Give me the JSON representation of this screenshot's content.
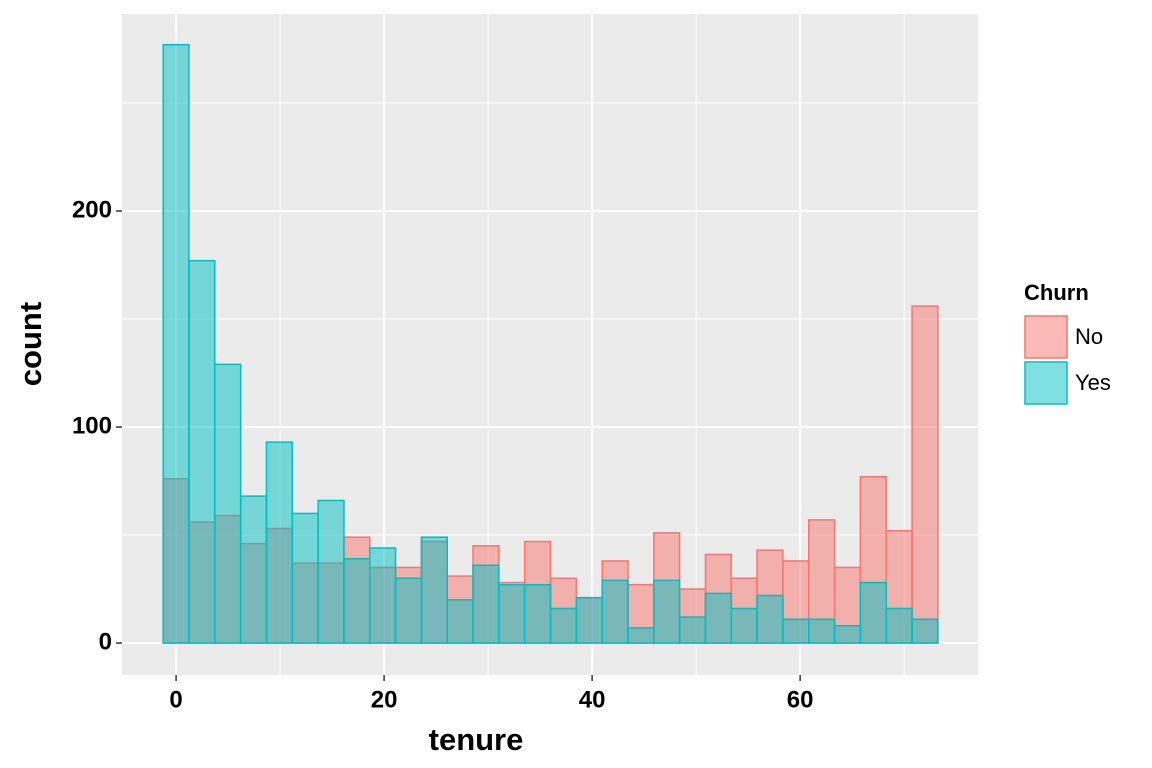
{
  "chart_data": {
    "type": "histogram",
    "x_label": "tenure",
    "y_label": "count",
    "legend_title": "Churn",
    "legend_position": "right",
    "bins": [
      -1.24,
      1.24,
      3.72,
      6.21,
      8.69,
      11.17,
      13.66,
      16.14,
      18.62,
      21.1,
      23.59,
      26.07,
      28.55,
      31.03,
      33.52,
      36.0,
      38.48,
      40.97,
      43.45,
      45.93,
      48.41,
      50.9,
      53.38,
      55.86,
      58.34,
      60.83,
      63.31,
      65.79,
      68.28,
      70.76,
      73.24
    ],
    "series": [
      {
        "name": "No",
        "color": "#F8766D",
        "values": [
          76,
          56,
          59,
          46,
          53,
          37,
          37,
          49,
          35,
          35,
          47,
          31,
          45,
          28,
          47,
          30,
          21,
          38,
          27,
          51,
          25,
          41,
          30,
          43,
          38,
          57,
          35,
          77,
          52,
          156
        ]
      },
      {
        "name": "Yes",
        "color": "#00BFC4",
        "values": [
          277,
          177,
          129,
          68,
          93,
          60,
          66,
          39,
          44,
          30,
          49,
          20,
          36,
          27,
          27,
          16,
          21,
          29,
          7,
          29,
          12,
          23,
          16,
          22,
          11,
          11,
          8,
          28,
          16,
          11
        ]
      }
    ],
    "xlim": [
      -5.2,
      77.1
    ],
    "ylim": [
      -14.8,
      291.2
    ],
    "xticks": [
      0,
      20,
      40,
      60
    ],
    "yticks": [
      0,
      100,
      200
    ],
    "grid": true
  }
}
